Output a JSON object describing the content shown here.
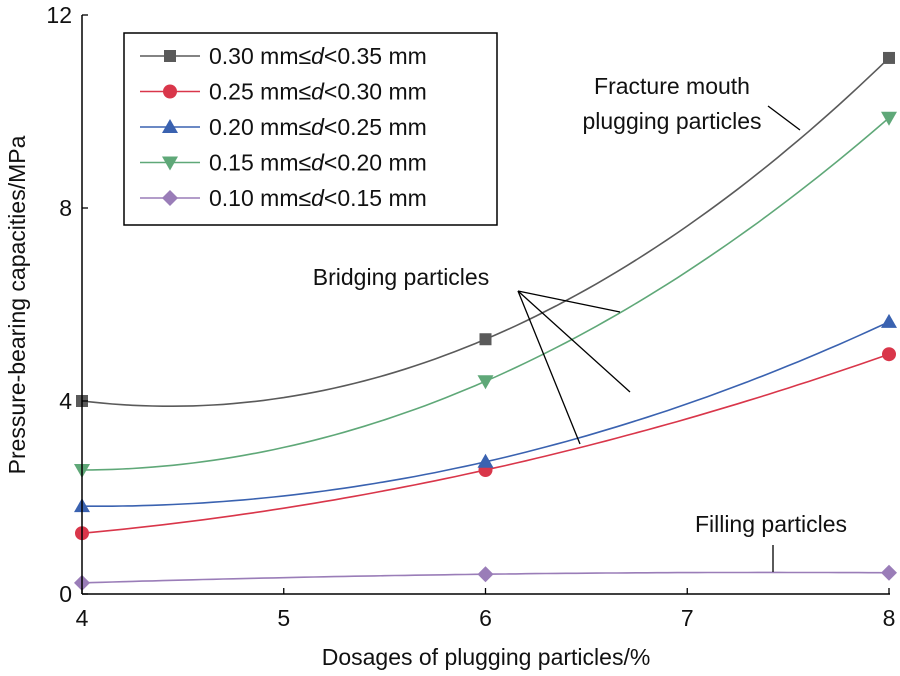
{
  "chart_data": {
    "type": "line",
    "title": "",
    "xlabel": "Dosages of plugging particles/%",
    "ylabel": "Pressure-bearing capacities/MPa",
    "xlim": [
      4,
      8
    ],
    "ylim": [
      0,
      12
    ],
    "xticks": [
      4,
      5,
      6,
      7,
      8
    ],
    "yticks": [
      0,
      4,
      8,
      12
    ],
    "grid": false,
    "legend_position": "top-left",
    "x": [
      4,
      6,
      8
    ],
    "series": [
      {
        "name": "0.30 mm≤d<0.35 mm",
        "prefix": "0.30 mm≤",
        "var": "d",
        "suffix": "<0.35 mm",
        "color": "#5a5a5a",
        "marker": "square",
        "values": [
          4.0,
          5.28,
          11.11
        ]
      },
      {
        "name": "0.25 mm≤d<0.30 mm",
        "prefix": "0.25 mm≤",
        "var": "d",
        "suffix": "<0.30 mm",
        "color": "#d9364a",
        "marker": "circle",
        "values": [
          1.26,
          2.57,
          4.97
        ]
      },
      {
        "name": "0.20 mm≤d<0.25 mm",
        "prefix": "0.20 mm≤",
        "var": "d",
        "suffix": "<0.25 mm",
        "color": "#3a62b0",
        "marker": "triangle-up",
        "values": [
          1.82,
          2.74,
          5.64
        ]
      },
      {
        "name": "0.15 mm≤d<0.20 mm",
        "prefix": "0.15 mm≤",
        "var": "d",
        "suffix": "<0.20 mm",
        "color": "#5fa878",
        "marker": "triangle-down",
        "values": [
          2.57,
          4.41,
          9.87
        ]
      },
      {
        "name": "0.10 mm≤d<0.15 mm",
        "prefix": "0.10 mm≤",
        "var": "d",
        "suffix": "<0.15 mm",
        "color": "#9a7db8",
        "marker": "diamond",
        "values": [
          0.23,
          0.41,
          0.44
        ]
      }
    ],
    "annotations": [
      {
        "lines": [
          "Fracture mouth",
          "plugging particles"
        ]
      },
      {
        "lines": [
          "Bridging particles"
        ]
      },
      {
        "lines": [
          "Filling particles"
        ]
      }
    ]
  }
}
